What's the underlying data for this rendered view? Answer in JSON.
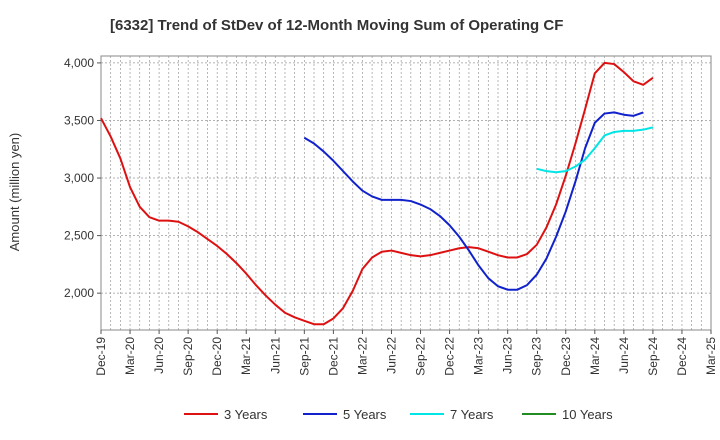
{
  "chart_data": {
    "type": "line",
    "title": "[6332]  Trend of StDev of 12-Month Moving Sum of Operating CF",
    "ylabel": "Amount (million yen)",
    "xlabel": "",
    "ylim": [
      1680,
      4060
    ],
    "yticks": [
      2000,
      2500,
      3000,
      3500,
      4000
    ],
    "ytick_labels": [
      "2,000",
      "2,500",
      "3,000",
      "3,500",
      "4,000"
    ],
    "x_start": "Dec-19",
    "x_end": "Mar-25",
    "xtick_labels": [
      "Dec-19",
      "Mar-20",
      "Jun-20",
      "Sep-20",
      "Dec-20",
      "Mar-21",
      "Jun-21",
      "Sep-21",
      "Dec-21",
      "Mar-22",
      "Jun-22",
      "Sep-22",
      "Dec-22",
      "Mar-23",
      "Jun-23",
      "Sep-23",
      "Dec-23",
      "Mar-24",
      "Jun-24",
      "Sep-24",
      "Dec-24",
      "Mar-25"
    ],
    "grid": true,
    "legend_position": "bottom",
    "series": [
      {
        "name": "3 Years",
        "color": "#dd1111",
        "start": "Dec-19",
        "values": [
          3520,
          3360,
          3170,
          2920,
          2750,
          2660,
          2630,
          2630,
          2620,
          2580,
          2530,
          2470,
          2410,
          2340,
          2260,
          2170,
          2070,
          1980,
          1900,
          1830,
          1790,
          1760,
          1730,
          1730,
          1780,
          1870,
          2020,
          2210,
          2310,
          2360,
          2370,
          2350,
          2330,
          2320,
          2330,
          2350,
          2370,
          2390,
          2400,
          2390,
          2360,
          2330,
          2310,
          2310,
          2340,
          2420,
          2570,
          2770,
          3020,
          3300,
          3600,
          3910,
          4000,
          3990,
          3920,
          3840,
          3810,
          3870
        ]
      },
      {
        "name": "5 Years",
        "color": "#1122cc",
        "start": "Sep-21",
        "values": [
          3350,
          3300,
          3230,
          3150,
          3060,
          2970,
          2890,
          2840,
          2810,
          2810,
          2810,
          2800,
          2770,
          2730,
          2670,
          2590,
          2490,
          2370,
          2240,
          2130,
          2060,
          2030,
          2030,
          2070,
          2160,
          2300,
          2490,
          2710,
          2970,
          3260,
          3480,
          3560,
          3570,
          3550,
          3540,
          3570
        ]
      },
      {
        "name": "7 Years",
        "color": "#00e5e5",
        "start": "Sep-23",
        "values": [
          3080,
          3060,
          3050,
          3060,
          3100,
          3160,
          3260,
          3370,
          3400,
          3410,
          3410,
          3420,
          3440
        ]
      },
      {
        "name": "10 Years",
        "color": "#228b22",
        "start": "Sep-24",
        "values": []
      }
    ]
  }
}
